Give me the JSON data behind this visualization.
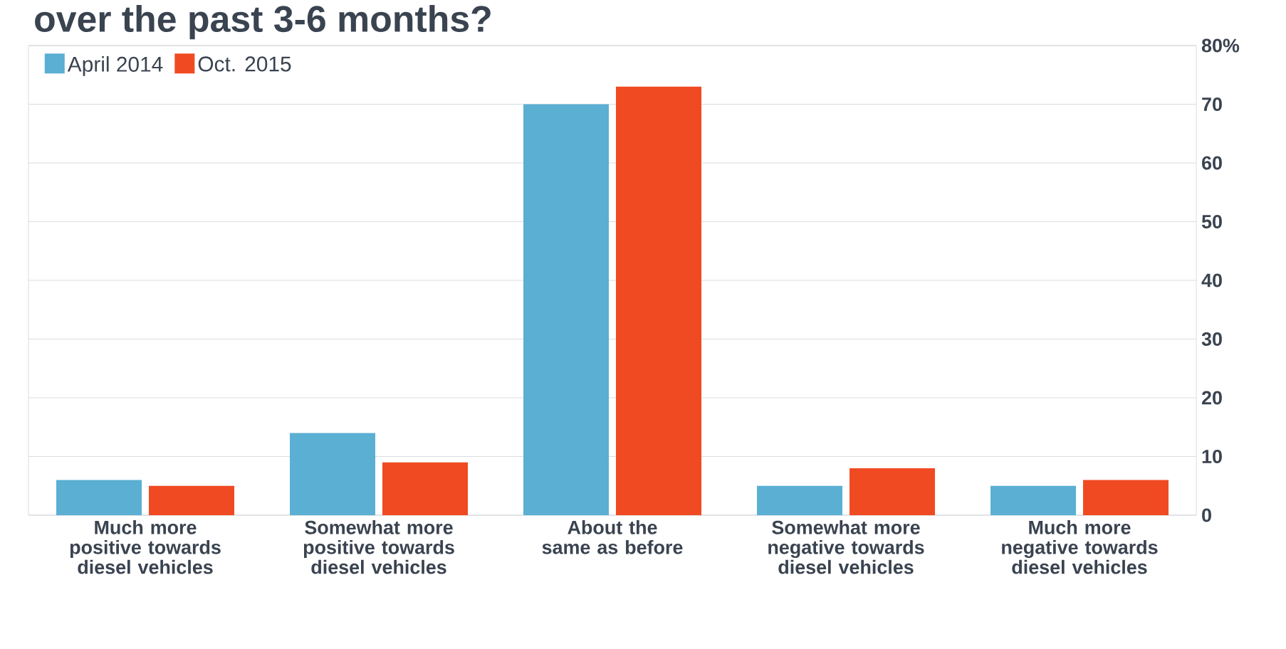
{
  "chart_data": {
    "type": "bar",
    "title": "over the past 3-6 months?",
    "categories": [
      "Much more positive towards diesel vehicles",
      "Somewhat more positive towards diesel vehicles",
      "About the same as before",
      "Somewhat more negative towards diesel vehicles",
      "Much more negative towards diesel vehicles"
    ],
    "series": [
      {
        "name": "April 2014",
        "color": "#5aafd3",
        "values": [
          6,
          14,
          70,
          5,
          5
        ]
      },
      {
        "name": "Oct. 2015",
        "color": "#f04a23",
        "values": [
          5,
          9,
          73,
          8,
          6
        ]
      }
    ],
    "ylim": [
      0,
      80
    ],
    "yticks": [
      0,
      10,
      20,
      30,
      40,
      50,
      60,
      70,
      {
        "value": 80,
        "label": "80%"
      }
    ],
    "grid": "y",
    "legend": "top left"
  }
}
